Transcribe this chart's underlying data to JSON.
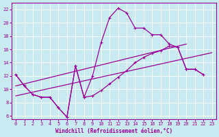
{
  "xlabel": "Windchill (Refroidissement éolien,°C)",
  "bg_color": "#c8eaf0",
  "line_color": "#990099",
  "grid_color": "#ffffff",
  "xlim": [
    -0.5,
    23.5
  ],
  "ylim": [
    5.5,
    23
  ],
  "xticks": [
    0,
    1,
    2,
    3,
    4,
    5,
    6,
    7,
    8,
    9,
    10,
    11,
    12,
    13,
    14,
    15,
    16,
    17,
    18,
    19,
    20,
    21,
    22,
    23
  ],
  "yticks": [
    6,
    8,
    10,
    12,
    14,
    16,
    18,
    20,
    22
  ],
  "line1_x": [
    0,
    1,
    2,
    3,
    4,
    5,
    6,
    7,
    8,
    9,
    10,
    11,
    12,
    13,
    14,
    15,
    16,
    17,
    18,
    19,
    20,
    21,
    22
  ],
  "line1_y": [
    12.2,
    10.5,
    9.2,
    8.8,
    8.8,
    7.2,
    5.8,
    13.5,
    8.8,
    12.0,
    17.0,
    20.8,
    22.2,
    21.5,
    19.2,
    19.2,
    18.2,
    18.2,
    16.8,
    16.3,
    13.0,
    13.0,
    12.2
  ],
  "line2_x": [
    0,
    1,
    2,
    3,
    4,
    5,
    6,
    7,
    8,
    9,
    10,
    11,
    12,
    13,
    14,
    15,
    16,
    17,
    18,
    19,
    20,
    21,
    22
  ],
  "line2_y": [
    12.2,
    10.5,
    9.2,
    8.8,
    8.8,
    7.2,
    5.8,
    13.5,
    8.8,
    9.0,
    9.8,
    10.8,
    11.8,
    12.8,
    14.0,
    14.8,
    15.4,
    15.8,
    16.5,
    16.3,
    13.0,
    13.0,
    12.2
  ],
  "line3_x": [
    0,
    20
  ],
  "line3_y": [
    10.5,
    16.8
  ],
  "line4_x": [
    0,
    23
  ],
  "line4_y": [
    9.0,
    15.5
  ]
}
